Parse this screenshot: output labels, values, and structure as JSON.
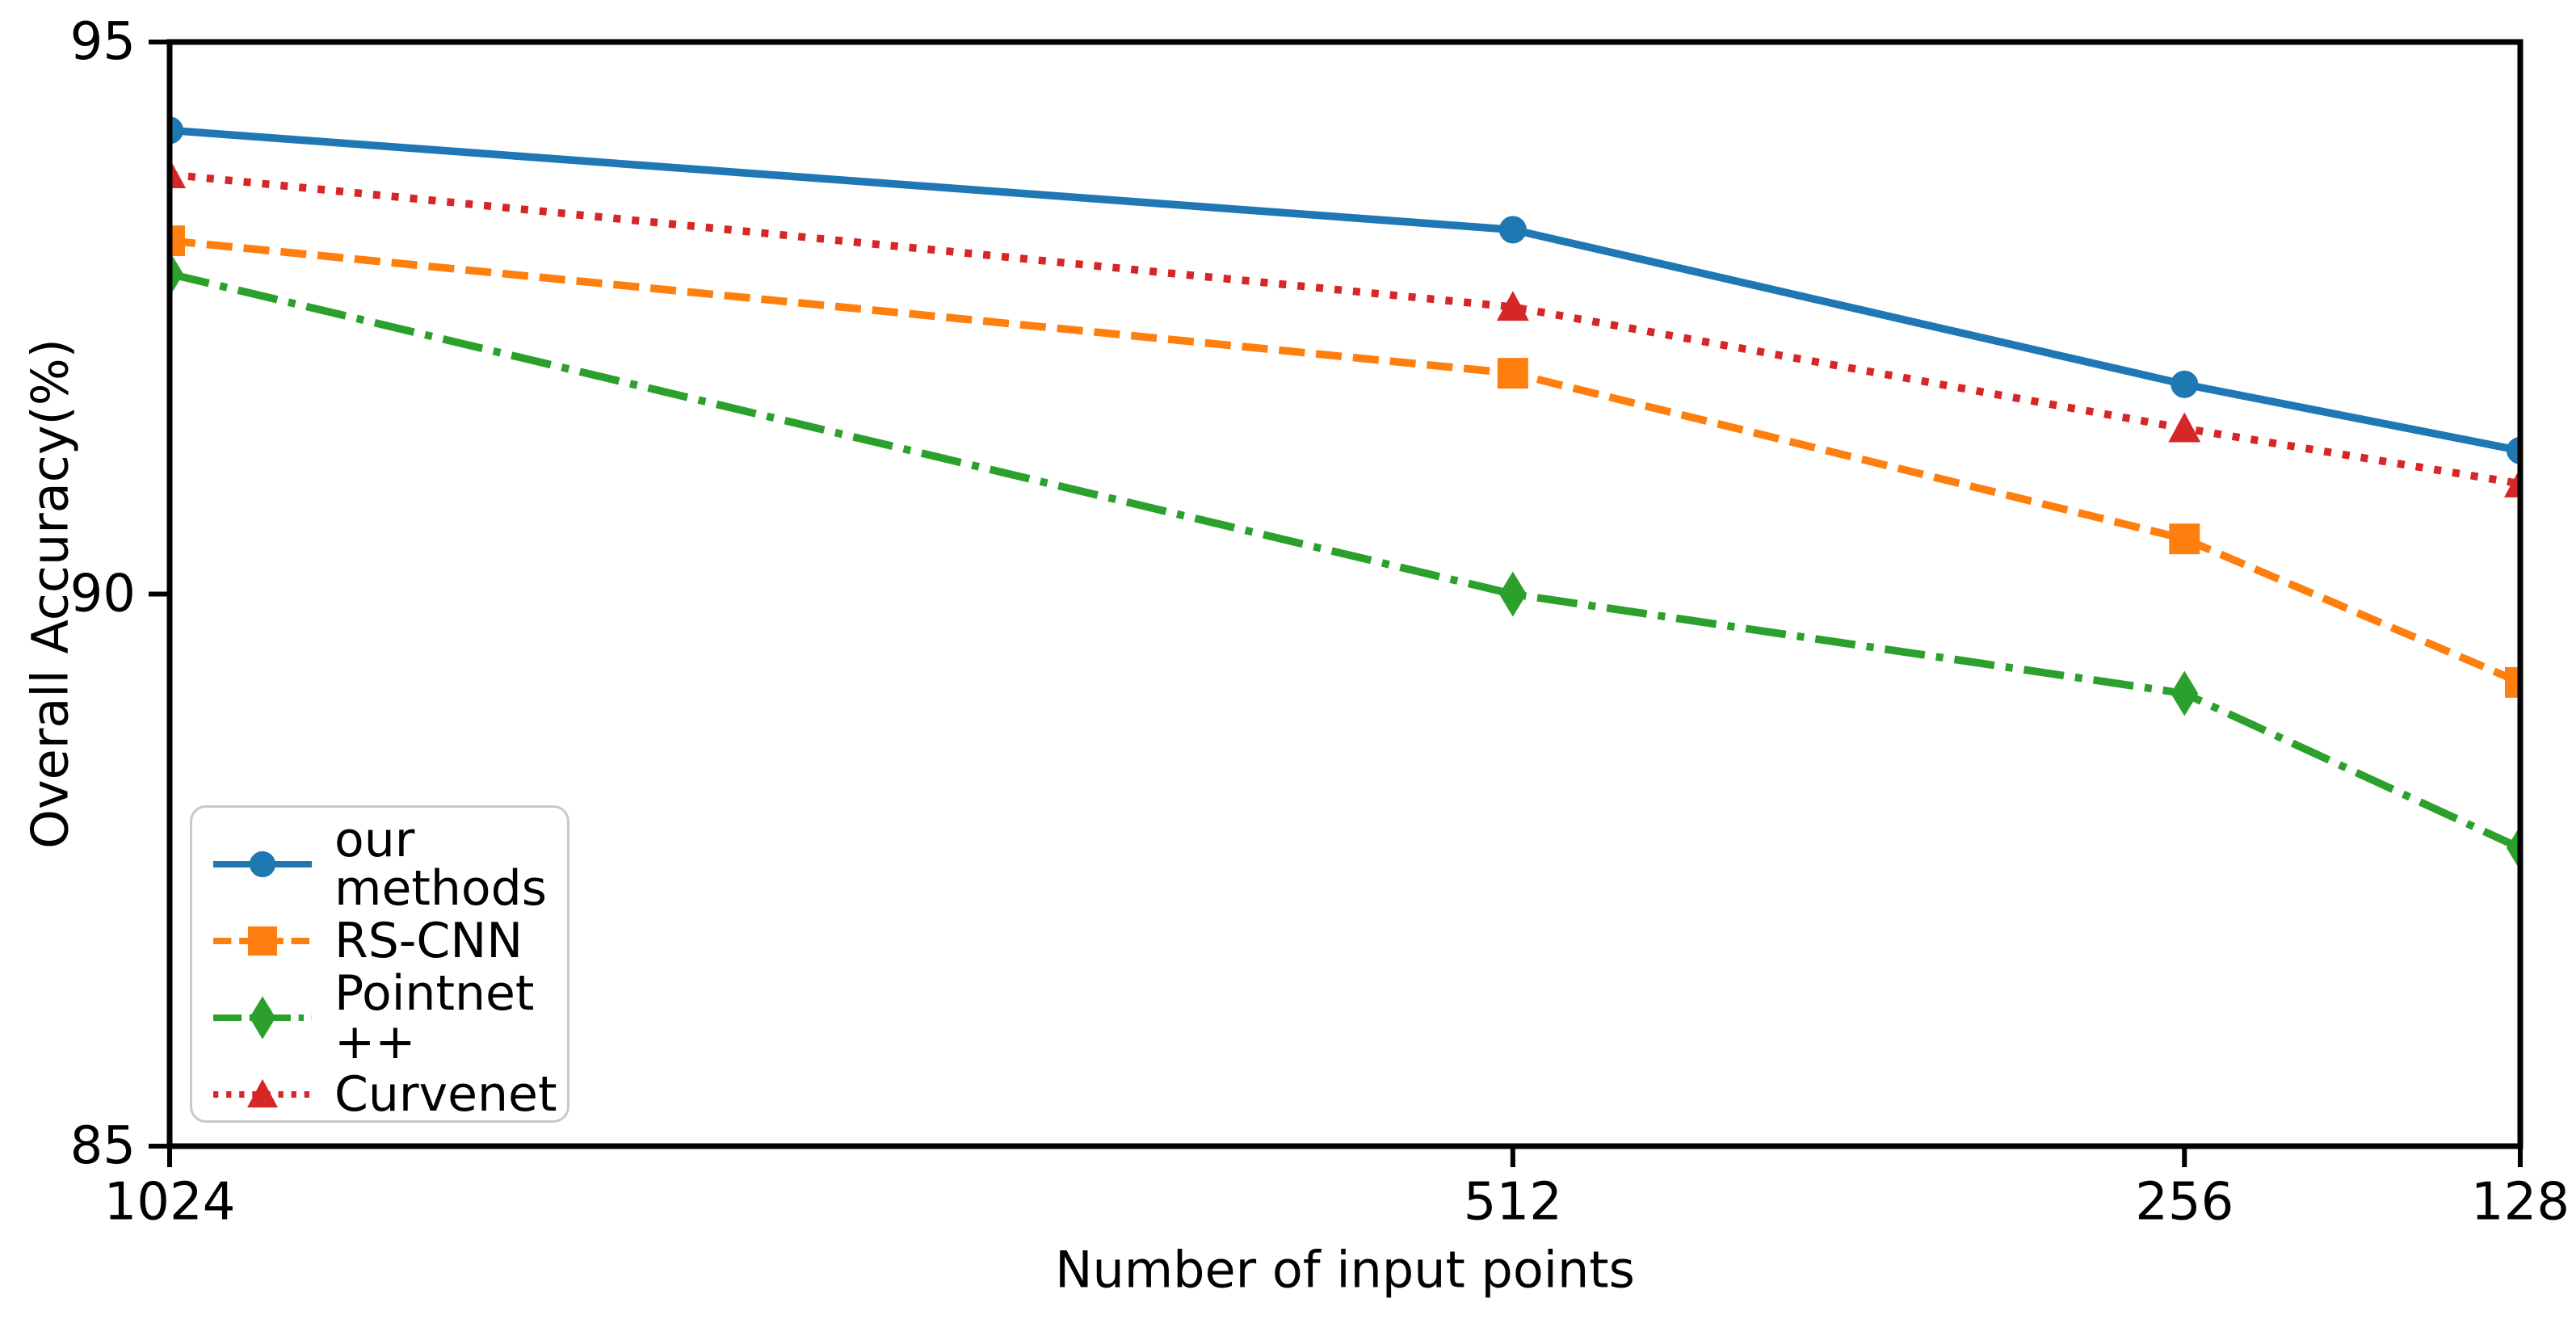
{
  "figure": {
    "background": "#ffffff",
    "text_color": "#000000"
  },
  "chart_data": {
    "type": "line",
    "title": "",
    "xlabel": "Number of input points",
    "ylabel": "Overall Accuracy(%)",
    "x": [
      1024,
      512,
      256,
      128
    ],
    "x_tick_labels": [
      "1024",
      "512",
      "256",
      "128"
    ],
    "x_axis": {
      "direction": "reversed-linear",
      "min": 128,
      "max": 1024
    },
    "y_ticks": [
      95,
      90,
      85
    ],
    "y_tick_labels": [
      "95",
      "90",
      "85"
    ],
    "ylim": [
      85,
      95
    ],
    "grid": false,
    "legend_position": "lower left",
    "series": [
      {
        "name": "our methods",
        "color": "#1f77b4",
        "linestyle": "solid",
        "marker": "circle",
        "values": [
          94.2,
          93.3,
          91.9,
          91.3
        ]
      },
      {
        "name": "RS-CNN",
        "color": "#ff7f0e",
        "linestyle": "dashed",
        "marker": "square",
        "values": [
          93.2,
          92.0,
          90.5,
          89.2
        ]
      },
      {
        "name": "Pointnet ++",
        "color": "#2ca02c",
        "linestyle": "dashdot",
        "marker": "diamond",
        "values": [
          92.9,
          90.0,
          89.1,
          87.7
        ]
      },
      {
        "name": "Curvenet",
        "color": "#d62728",
        "linestyle": "dotted",
        "marker": "triangle",
        "values": [
          93.8,
          92.6,
          91.5,
          91.0
        ]
      }
    ]
  }
}
